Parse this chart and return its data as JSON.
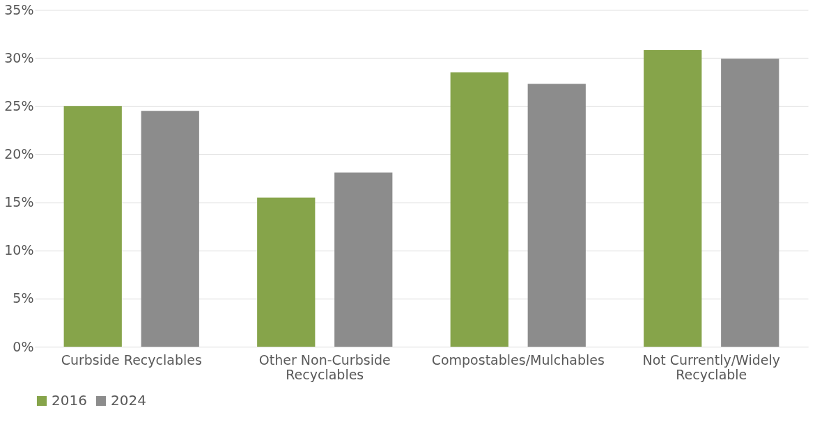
{
  "chart_data": {
    "type": "bar",
    "categories": [
      "Curbside Recyclables",
      "Other Non-Curbside Recyclables",
      "Compostables/Mulchables",
      "Not Currently/Widely Recyclable"
    ],
    "series": [
      {
        "name": "2016",
        "color": "#86a44a",
        "values": [
          25.0,
          15.5,
          28.5,
          30.8
        ]
      },
      {
        "name": "2024",
        "color": "#8c8c8c",
        "values": [
          24.5,
          18.1,
          27.3,
          29.9
        ]
      }
    ],
    "ylim": [
      0,
      35
    ],
    "yticks": [
      {
        "value": 0,
        "label": "0%"
      },
      {
        "value": 5,
        "label": "5%"
      },
      {
        "value": 10,
        "label": "10%"
      },
      {
        "value": 15,
        "label": "15%"
      },
      {
        "value": 20,
        "label": "20%"
      },
      {
        "value": 25,
        "label": "25%"
      },
      {
        "value": 30,
        "label": "30%"
      },
      {
        "value": 35,
        "label": "35%"
      }
    ],
    "grid": "y",
    "legend": "bottom"
  }
}
